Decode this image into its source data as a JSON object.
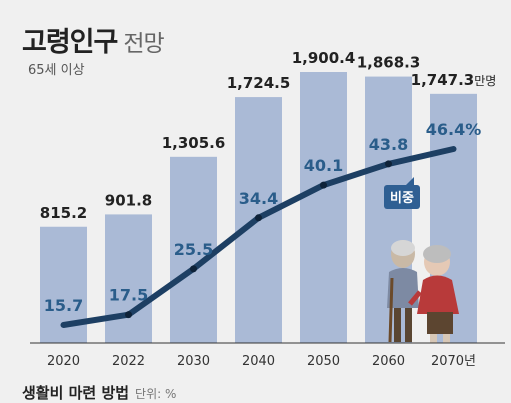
{
  "header": {
    "title_bold": "고령인구",
    "title_light": "전망",
    "subtitle": "65세 이상"
  },
  "footer": {
    "section_title": "생활비 마련 방법",
    "unit_label": "단위: %"
  },
  "colors": {
    "bar": "#aabad6",
    "line": "#1d3f63",
    "ratio_label": "#2a5d8a",
    "badge": "#2f5f93",
    "background": "#f0f0f0"
  },
  "chart_data": {
    "type": "bar",
    "categories": [
      "2020",
      "2022",
      "2030",
      "2040",
      "2050",
      "2060",
      "2070년"
    ],
    "bar_unit": "만명",
    "series": [
      {
        "name": "",
        "type": "bar",
        "values": [
          815.2,
          901.8,
          1305.6,
          1724.5,
          1900.4,
          1868.3,
          1747.3
        ],
        "labels": [
          "815.2",
          "901.8",
          "1,305.6",
          "1,724.5",
          "1,900.4",
          "1,868.3",
          "1,747.3"
        ]
      },
      {
        "name": "비중",
        "type": "line",
        "values": [
          15.7,
          17.5,
          25.5,
          34.4,
          40.1,
          43.8,
          46.4
        ],
        "labels": [
          "15.7",
          "17.5",
          "25.5",
          "34.4",
          "40.1",
          "43.8",
          "46.4%"
        ]
      }
    ],
    "ylim": [
      0,
      2200
    ],
    "grid": false,
    "legend": "none"
  }
}
